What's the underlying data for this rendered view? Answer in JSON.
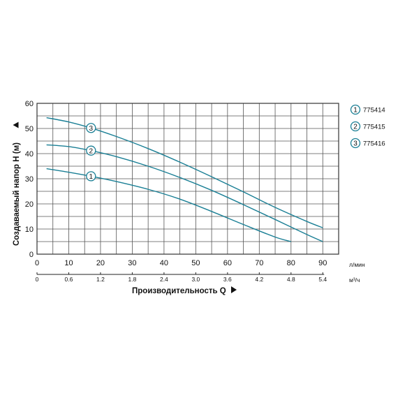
{
  "chart_data": {
    "type": "line",
    "ylabel": "Создаваемый напор H (м)",
    "xlabel": "Производительность Q",
    "x_unit": "л/мин",
    "x2_unit": "м³/ч",
    "x_ticks": [
      "0",
      "10",
      "20",
      "30",
      "40",
      "50",
      "60",
      "70",
      "80",
      "90"
    ],
    "x2_ticks": [
      "0",
      "0.6",
      "1.2",
      "1.8",
      "2.4",
      "3.0",
      "3.6",
      "4.2",
      "4.8",
      "5.4"
    ],
    "y_ticks": [
      "0",
      "10",
      "20",
      "30",
      "40",
      "50",
      "60"
    ],
    "xlim": [
      0,
      95
    ],
    "ylim": [
      0,
      60
    ],
    "grid": true,
    "legend_position": "right",
    "series": [
      {
        "name": "775414",
        "marker": "1",
        "color": "#1a7f95",
        "x": [
          3,
          10,
          17,
          25,
          35,
          45,
          55,
          65,
          75,
          80
        ],
        "y": [
          34,
          32.6,
          31,
          28.9,
          25.8,
          21.9,
          17,
          11.8,
          6.8,
          5
        ]
      },
      {
        "name": "775415",
        "marker": "2",
        "color": "#1a7f95",
        "x": [
          3,
          10,
          17,
          25,
          35,
          45,
          55,
          65,
          75,
          85,
          90
        ],
        "y": [
          43.5,
          42.8,
          41.2,
          38.8,
          35,
          30.5,
          25.4,
          19.7,
          13.8,
          7.8,
          5
        ]
      },
      {
        "name": "775416",
        "marker": "3",
        "color": "#1a7f95",
        "x": [
          3,
          10,
          17,
          25,
          35,
          45,
          55,
          65,
          75,
          85,
          90
        ],
        "y": [
          54.3,
          52.6,
          50.2,
          46.8,
          42,
          36.6,
          30.8,
          24.8,
          18.6,
          13,
          10.5
        ]
      }
    ],
    "series_markers_at": [
      17,
      17,
      17
    ]
  }
}
